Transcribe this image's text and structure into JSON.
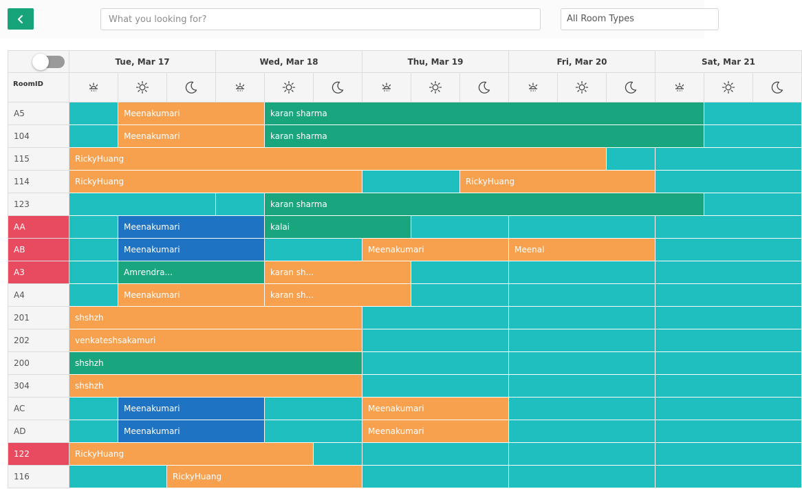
{
  "toolbar": {
    "back_icon": "chevron-left-icon",
    "search_placeholder": "What you looking for?",
    "room_type_value": "All Room Types"
  },
  "calendar": {
    "room_column_header": "RoomID",
    "days": [
      "Tue, Mar 17",
      "Wed, Mar 18",
      "Thu, Mar 19",
      "Fri, Mar 20",
      "Sat, Mar 21"
    ],
    "slot_icons": [
      "sunrise-icon",
      "sun-icon",
      "moon-icon"
    ],
    "rooms": [
      {
        "id": "A5",
        "alert": false
      },
      {
        "id": "104",
        "alert": false
      },
      {
        "id": "115",
        "alert": false
      },
      {
        "id": "114",
        "alert": false
      },
      {
        "id": "123",
        "alert": false
      },
      {
        "id": "AA",
        "alert": true
      },
      {
        "id": "AB",
        "alert": true
      },
      {
        "id": "A3",
        "alert": true
      },
      {
        "id": "A4",
        "alert": false
      },
      {
        "id": "201",
        "alert": false
      },
      {
        "id": "202",
        "alert": false
      },
      {
        "id": "200",
        "alert": false
      },
      {
        "id": "304",
        "alert": false
      },
      {
        "id": "AC",
        "alert": false
      },
      {
        "id": "AD",
        "alert": false
      },
      {
        "id": "122",
        "alert": true
      },
      {
        "id": "116",
        "alert": false
      }
    ],
    "bookings": [
      {
        "row": 0,
        "start": 1,
        "span": 3,
        "guest": "Meenakumari",
        "status": "orange"
      },
      {
        "row": 0,
        "start": 4,
        "span": 9,
        "guest": "karan sharma",
        "status": "green"
      },
      {
        "row": 1,
        "start": 1,
        "span": 3,
        "guest": "Meenakumari",
        "status": "orange"
      },
      {
        "row": 1,
        "start": 4,
        "span": 9,
        "guest": "karan sharma",
        "status": "green"
      },
      {
        "row": 2,
        "start": 0,
        "span": 11,
        "guest": "RickyHuang",
        "status": "orange"
      },
      {
        "row": 3,
        "start": 0,
        "span": 6,
        "guest": "RickyHuang",
        "status": "orange"
      },
      {
        "row": 3,
        "start": 8,
        "span": 4,
        "guest": "RickyHuang",
        "status": "orange"
      },
      {
        "row": 4,
        "start": 4,
        "span": 9,
        "guest": "karan sharma",
        "status": "green"
      },
      {
        "row": 5,
        "start": 1,
        "span": 3,
        "guest": "Meenakumari",
        "status": "blue"
      },
      {
        "row": 5,
        "start": 4,
        "span": 3,
        "guest": "kalai",
        "status": "green"
      },
      {
        "row": 6,
        "start": 1,
        "span": 3,
        "guest": "Meenakumari",
        "status": "blue"
      },
      {
        "row": 6,
        "start": 6,
        "span": 3,
        "guest": "Meenakumari",
        "status": "orange"
      },
      {
        "row": 6,
        "start": 9,
        "span": 3,
        "guest": "Meenal",
        "status": "orange"
      },
      {
        "row": 7,
        "start": 1,
        "span": 3,
        "guest": "Amrendra...",
        "status": "green"
      },
      {
        "row": 7,
        "start": 4,
        "span": 3,
        "guest": "karan sh...",
        "status": "orange"
      },
      {
        "row": 8,
        "start": 1,
        "span": 3,
        "guest": "Meenakumari",
        "status": "orange"
      },
      {
        "row": 8,
        "start": 4,
        "span": 3,
        "guest": "karan sh...",
        "status": "orange"
      },
      {
        "row": 9,
        "start": 0,
        "span": 6,
        "guest": "shshzh",
        "status": "orange"
      },
      {
        "row": 10,
        "start": 0,
        "span": 6,
        "guest": "venkateshsakamuri",
        "status": "orange"
      },
      {
        "row": 11,
        "start": 0,
        "span": 6,
        "guest": "shshzh",
        "status": "green"
      },
      {
        "row": 12,
        "start": 0,
        "span": 6,
        "guest": "shshzh",
        "status": "orange"
      },
      {
        "row": 13,
        "start": 1,
        "span": 3,
        "guest": "Meenakumari",
        "status": "blue"
      },
      {
        "row": 13,
        "start": 6,
        "span": 3,
        "guest": "Meenakumari",
        "status": "orange"
      },
      {
        "row": 14,
        "start": 1,
        "span": 3,
        "guest": "Meenakumari",
        "status": "blue"
      },
      {
        "row": 14,
        "start": 6,
        "span": 3,
        "guest": "Meenakumari",
        "status": "orange"
      },
      {
        "row": 15,
        "start": 0,
        "span": 5,
        "guest": "RickyHuang",
        "status": "orange"
      },
      {
        "row": 16,
        "start": 2,
        "span": 4,
        "guest": "RickyHuang",
        "status": "orange"
      }
    ]
  },
  "colors": {
    "available": "#1fbfbf",
    "orange": "#f7a14f",
    "green": "#19a67f",
    "blue": "#1e73c2",
    "alert": "#e84a5f",
    "accent": "#17a47a"
  }
}
